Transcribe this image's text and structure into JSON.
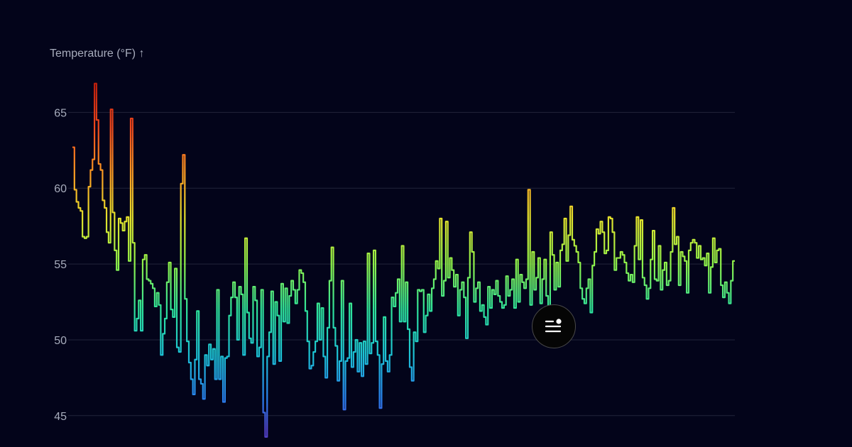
{
  "chart_data": {
    "type": "line",
    "curve": "step",
    "ylabel": "Temperature (°F) ↑",
    "ylim": [
      43.4,
      68.2
    ],
    "yticks": [
      45,
      50,
      55,
      60,
      65
    ],
    "grid": true,
    "gradient": {
      "stops": [
        {
          "value": 44,
          "color": "#5241c8"
        },
        {
          "value": 46,
          "color": "#2a7ff0"
        },
        {
          "value": 49,
          "color": "#1cc3d6"
        },
        {
          "value": 52,
          "color": "#2ee39a"
        },
        {
          "value": 55,
          "color": "#8ef24a"
        },
        {
          "value": 58,
          "color": "#e4e32c"
        },
        {
          "value": 61,
          "color": "#fb9a22"
        },
        {
          "value": 64,
          "color": "#f0481c"
        },
        {
          "value": 67,
          "color": "#b81d0c"
        }
      ]
    },
    "series": [
      {
        "values": [
          62.7,
          59.9,
          59.1,
          58.7,
          58.5,
          56.8,
          56.7,
          56.8,
          60.1,
          61.2,
          61.9,
          66.9,
          64.5,
          61.6,
          61.2,
          59.2,
          58.7,
          57.1,
          56.4,
          65.2,
          58.4,
          55.9,
          54.6,
          58.0,
          57.7,
          57.2,
          57.8,
          58.1,
          55.2,
          64.6,
          56.4,
          50.6,
          51.4,
          52.6,
          50.6,
          55.3,
          55.6,
          54.0,
          53.9,
          53.7,
          53.4,
          52.2,
          53.1,
          52.3,
          49.0,
          50.4,
          51.4,
          53.8,
          55.1,
          52.0,
          51.5,
          54.7,
          49.5,
          49.2,
          60.3,
          62.2,
          52.7,
          49.9,
          48.5,
          47.4,
          46.4,
          48.7,
          51.9,
          47.4,
          47.1,
          46.1,
          49.0,
          48.3,
          49.7,
          48.7,
          49.4,
          47.4,
          53.3,
          47.4,
          48.9,
          45.9,
          48.8,
          48.9,
          51.6,
          52.8,
          53.8,
          52.8,
          50.0,
          53.5,
          53.0,
          49.0,
          56.7,
          51.8,
          50.1,
          49.8,
          53.5,
          52.6,
          48.9,
          49.5,
          53.3,
          45.2,
          43.6,
          48.9,
          50.5,
          53.2,
          48.4,
          52.5,
          51.6,
          48.6,
          53.7,
          51.2,
          53.4,
          51.1,
          52.9,
          53.9,
          53.3,
          52.4,
          53.3,
          54.6,
          54.4,
          53.8,
          51.9,
          49.9,
          48.1,
          48.3,
          49.2,
          49.9,
          52.4,
          50.0,
          52.1,
          48.9,
          47.5,
          50.8,
          53.9,
          56.1,
          50.8,
          49.6,
          47.3,
          48.6,
          53.9,
          45.4,
          48.6,
          48.8,
          52.4,
          48.2,
          49.2,
          50.0,
          47.9,
          49.8,
          47.6,
          49.9,
          48.4,
          55.7,
          49.1,
          49.8,
          55.9,
          49.9,
          49.0,
          45.5,
          48.4,
          51.5,
          48.6,
          47.9,
          49.0,
          52.8,
          52.2,
          53.1,
          54.0,
          51.2,
          56.2,
          51.2,
          53.8,
          50.7,
          48.2,
          47.3,
          50.5,
          49.9,
          53.3,
          53.2,
          53.3,
          50.5,
          51.6,
          53.0,
          51.9,
          53.4,
          54.0,
          55.2,
          54.7,
          58.0,
          52.9,
          53.9,
          57.8,
          54.1,
          55.4,
          54.6,
          53.5,
          54.3,
          51.6,
          53.3,
          53.8,
          52.8,
          50.1,
          54.1,
          57.1,
          55.8,
          52.5,
          53.4,
          53.8,
          51.9,
          52.3,
          51.5,
          51.0,
          53.5,
          52.1,
          53.3,
          53.0,
          53.9,
          52.9,
          52.5,
          52.1,
          52.3,
          54.2,
          52.9,
          53.3,
          54.0,
          52.1,
          55.3,
          52.5,
          54.3,
          53.8,
          53.4,
          54.0,
          59.9,
          52.3,
          55.8,
          53.3,
          54.1,
          55.4,
          52.4,
          54.0,
          55.3,
          52.9,
          51.8,
          57.1,
          55.6,
          53.3,
          55.1,
          53.5,
          55.9,
          56.3,
          58.0,
          55.2,
          56.9,
          58.8,
          56.6,
          56.2,
          55.8,
          55.1,
          53.4,
          52.7,
          52.4,
          53.4,
          54.0,
          51.8,
          54.9,
          55.8,
          57.3,
          57.0,
          57.8,
          57.1,
          55.7,
          55.9,
          58.1,
          58.0,
          57.1,
          54.6,
          55.4,
          55.4,
          55.8,
          55.6,
          55.1,
          54.4,
          53.9,
          54.3,
          53.8,
          56.2,
          58.1,
          55.3,
          57.9,
          54.1,
          53.6,
          52.7,
          53.4,
          55.3,
          57.2,
          54.0,
          53.9,
          56.2,
          53.3,
          54.6,
          55.1,
          53.6,
          53.9,
          55.8,
          58.7,
          56.3,
          56.8,
          53.6,
          55.8,
          55.5,
          55.2,
          53.1,
          55.9,
          56.4,
          56.6,
          56.4,
          55.4,
          56.2,
          55.3,
          55.4,
          54.9,
          55.7,
          53.1,
          54.8,
          56.7,
          55.1,
          55.9,
          56.0,
          53.6,
          52.8,
          53.8,
          53.1,
          52.4,
          53.9,
          55.2
        ]
      }
    ]
  },
  "menu": {
    "icon": "menu-list-icon"
  }
}
